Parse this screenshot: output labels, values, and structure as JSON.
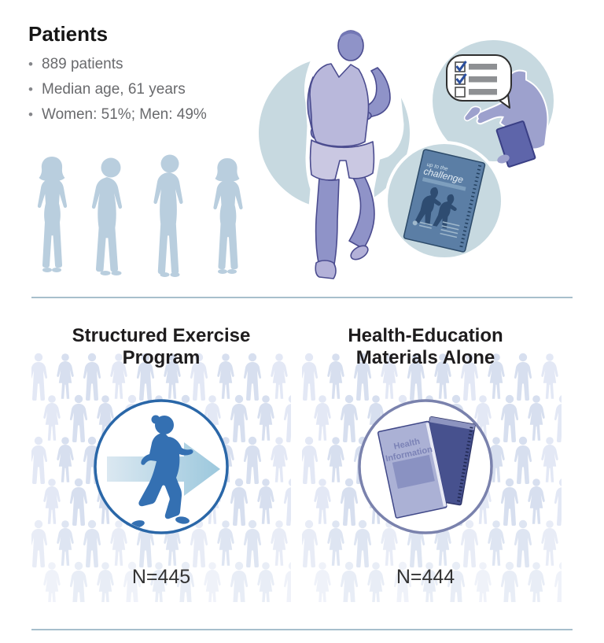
{
  "patients": {
    "title": "Patients",
    "bullets": [
      "889 patients",
      "Median age, 61 years",
      "Women: 51%; Men: 49%"
    ]
  },
  "arms": {
    "exercise": {
      "title_lines": [
        "Structured Exercise",
        "Program"
      ],
      "n": "N=445"
    },
    "education": {
      "title_lines": [
        "Health-Education",
        "Materials Alone"
      ],
      "n": "N=444"
    }
  },
  "challenge_booklet": {
    "cover_line1": "up to the",
    "cover_line2": "challenge"
  },
  "health_booklet": {
    "line1": "Health",
    "line2": "Information"
  },
  "icons": {
    "checkmark_glyph": "✓"
  },
  "colors": {
    "accent_blue": "#2a67a8",
    "walker_blue": "#3470b2",
    "light_circle_blue": "#c7d9e0",
    "runner_purple": "#8f93c8",
    "runner_shirt": "#b9b8db",
    "booklet_navy": "#5b7ea5",
    "health_booklet_purple": "#abb1d5",
    "purple_ring": "#7a82ad",
    "divider": "#a7bfcc",
    "patient_silhouette": "#b9cede",
    "crowd_a": "#d7dfef",
    "crowd_b": "#e3e8f5",
    "text_dark": "#1e1c1d",
    "text_gray": "#696a6d"
  }
}
